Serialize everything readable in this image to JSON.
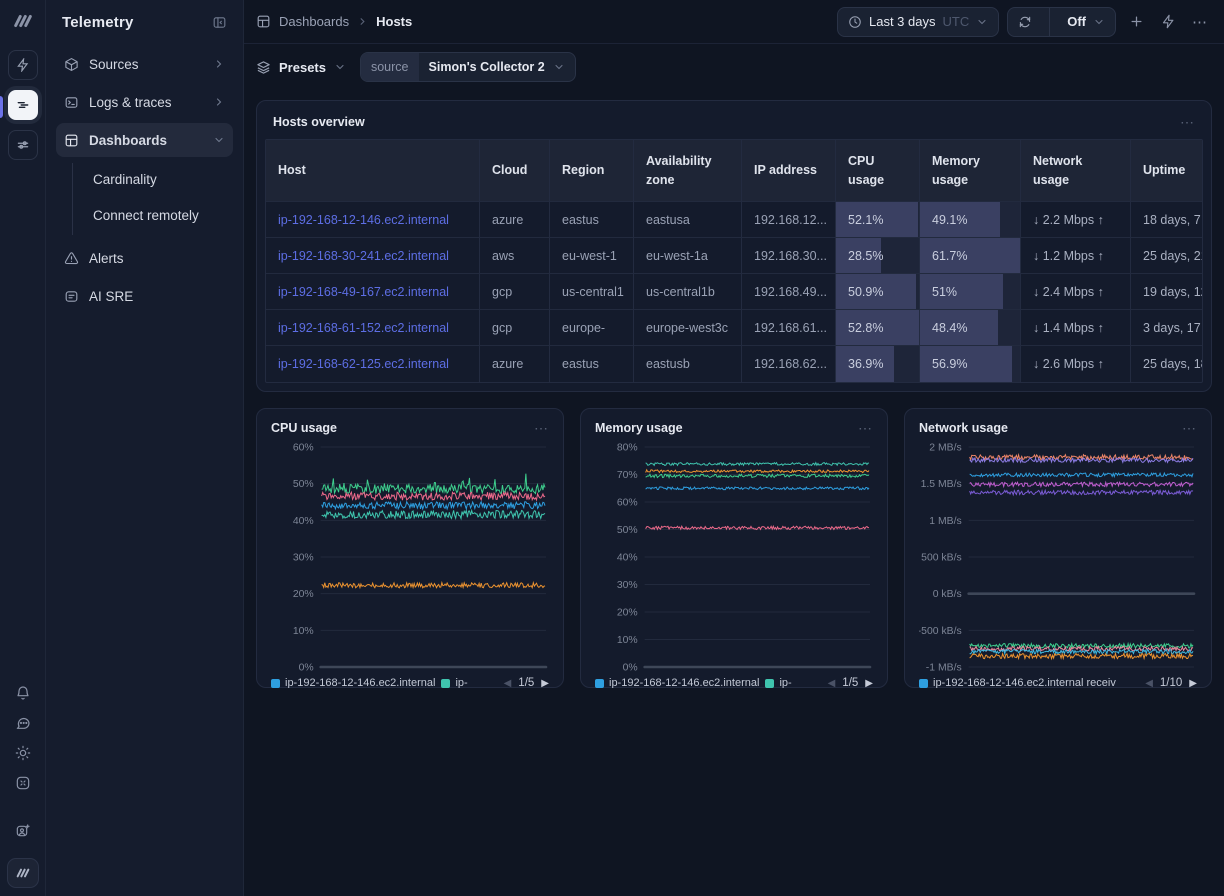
{
  "app": {
    "title": "Telemetry",
    "accent_color": "#6c72e8",
    "link_color": "#5d6ee4"
  },
  "sidebar": {
    "title": "Telemetry",
    "items": [
      {
        "label": "Sources"
      },
      {
        "label": "Logs & traces"
      },
      {
        "label": "Dashboards",
        "children": [
          {
            "label": "Cardinality"
          },
          {
            "label": "Connect remotely"
          }
        ]
      },
      {
        "label": "Alerts"
      },
      {
        "label": "AI SRE"
      }
    ]
  },
  "topbar": {
    "breadcrumb": {
      "parent": "Dashboards",
      "current": "Hosts"
    },
    "time_range": {
      "label": "Last 3 days",
      "timezone": "UTC"
    },
    "refresh": {
      "label": "Off"
    },
    "overflow_menu": "⋯"
  },
  "filterbar": {
    "presets_label": "Presets",
    "source_key": "source",
    "source_value": "Simon's Collector 2"
  },
  "hosts_table": {
    "title": "Hosts overview",
    "menu": "⋯",
    "columns": [
      "Host",
      "Cloud",
      "Region",
      "Availability zone",
      "IP address",
      "CPU usage",
      "Memory usage",
      "Network usage",
      "Uptime"
    ],
    "cpu_bar_max": 52.8,
    "mem_bar_max": 61.7,
    "rows": [
      {
        "host": "ip-192-168-12-146.ec2.internal",
        "cloud": "azure",
        "region": "eastus",
        "zone": "eastusa",
        "ip": "192.168.12...",
        "cpu": "52.1%",
        "cpu_pct": 52.1,
        "mem": "49.1%",
        "mem_pct": 49.1,
        "network": "↓ 2.2 Mbps ↑",
        "uptime": "18 days, 7"
      },
      {
        "host": "ip-192-168-30-241.ec2.internal",
        "cloud": "aws",
        "region": "eu-west-1",
        "zone": "eu-west-1a",
        "ip": "192.168.30...",
        "cpu": "28.5%",
        "cpu_pct": 28.5,
        "mem": "61.7%",
        "mem_pct": 61.7,
        "network": "↓ 1.2 Mbps ↑",
        "uptime": "25 days, 21"
      },
      {
        "host": "ip-192-168-49-167.ec2.internal",
        "cloud": "gcp",
        "region": "us-central1",
        "zone": "us-central1b",
        "ip": "192.168.49...",
        "cpu": "50.9%",
        "cpu_pct": 50.9,
        "mem": "51%",
        "mem_pct": 51.0,
        "network": "↓ 2.4 Mbps ↑",
        "uptime": "19 days, 12"
      },
      {
        "host": "ip-192-168-61-152.ec2.internal",
        "cloud": "gcp",
        "region": "europe-",
        "zone": "europe-west3c",
        "ip": "192.168.61...",
        "cpu": "52.8%",
        "cpu_pct": 52.8,
        "mem": "48.4%",
        "mem_pct": 48.4,
        "network": "↓ 1.4 Mbps ↑",
        "uptime": "3 days, 17"
      },
      {
        "host": "ip-192-168-62-125.ec2.internal",
        "cloud": "azure",
        "region": "eastus",
        "zone": "eastusb",
        "ip": "192.168.62...",
        "cpu": "36.9%",
        "cpu_pct": 36.9,
        "mem": "56.9%",
        "mem_pct": 56.9,
        "network": "↓ 2.6 Mbps ↑",
        "uptime": "25 days, 18"
      }
    ]
  },
  "chart_data": [
    {
      "id": "cpu",
      "type": "line",
      "title": "CPU usage",
      "menu": "⋯",
      "x_range": "Last 3 days",
      "ylim": [
        0,
        60
      ],
      "baseline": 0,
      "grid": true,
      "ticks": [
        {
          "label": "60%",
          "value": 60
        },
        {
          "label": "50%",
          "value": 50
        },
        {
          "label": "40%",
          "value": 40
        },
        {
          "label": "30%",
          "value": 30
        },
        {
          "label": "20%",
          "value": 20
        },
        {
          "label": "10%",
          "value": 10
        },
        {
          "label": "0%",
          "value": 0
        }
      ],
      "series": [
        {
          "name": "teal-series",
          "color": "#3fc4ae",
          "base": 41.6,
          "amp": 1.1
        },
        {
          "name": "green-series",
          "color": "#3ecf8e",
          "base": 48.6,
          "amp": 1.3,
          "spike": 3
        },
        {
          "name": "pink-series",
          "color": "#ed6a8b",
          "base": 46.6,
          "amp": 1.1
        },
        {
          "name": "blue-series",
          "color": "#2e9fe0",
          "base": 44.1,
          "amp": 1.0
        },
        {
          "name": "orange-series",
          "color": "#ec9330",
          "base": 22.3,
          "amp": 0.7
        }
      ],
      "legend": [
        {
          "label": "ip-192-168-12-146.ec2.internal",
          "color": "#2e9fe0"
        },
        {
          "label": "ip-",
          "color": "#3fc4ae"
        }
      ],
      "pagination": {
        "page": "1/5"
      }
    },
    {
      "id": "memory",
      "type": "line",
      "title": "Memory usage",
      "menu": "⋯",
      "x_range": "Last 3 days",
      "ylim": [
        0,
        80
      ],
      "baseline": 0,
      "grid": true,
      "ticks": [
        {
          "label": "80%",
          "value": 80
        },
        {
          "label": "70%",
          "value": 70
        },
        {
          "label": "60%",
          "value": 60
        },
        {
          "label": "50%",
          "value": 50
        },
        {
          "label": "40%",
          "value": 40
        },
        {
          "label": "30%",
          "value": 30
        },
        {
          "label": "20%",
          "value": 20
        },
        {
          "label": "10%",
          "value": 10
        },
        {
          "label": "0%",
          "value": 0
        }
      ],
      "series": [
        {
          "name": "teal-series",
          "color": "#3fc4ae",
          "base": 73.8,
          "amp": 0.5
        },
        {
          "name": "orange-series",
          "color": "#ec9330",
          "base": 71.2,
          "amp": 0.5
        },
        {
          "name": "green-series",
          "color": "#3ecf8e",
          "base": 69.5,
          "amp": 0.6
        },
        {
          "name": "blue-series",
          "color": "#2e9fe0",
          "base": 65.0,
          "amp": 0.5
        },
        {
          "name": "pink-series",
          "color": "#ed6a8b",
          "base": 50.6,
          "amp": 0.6
        }
      ],
      "legend": [
        {
          "label": "ip-192-168-12-146.ec2.internal",
          "color": "#2e9fe0"
        },
        {
          "label": "ip-",
          "color": "#3fc4ae"
        }
      ],
      "pagination": {
        "page": "1/5"
      }
    },
    {
      "id": "network",
      "type": "line",
      "title": "Network usage",
      "menu": "⋯",
      "x_range": "Last 3 days",
      "ylim": [
        -1,
        2
      ],
      "baseline": 0,
      "grid": true,
      "ticks": [
        {
          "label": "2 MB/s",
          "value": 2
        },
        {
          "label": "1.5 MB/s",
          "value": 1.5
        },
        {
          "label": "1 MB/s",
          "value": 1
        },
        {
          "label": "500 kB/s",
          "value": 0.5
        },
        {
          "label": "0 kB/s",
          "value": 0
        },
        {
          "label": "-500 kB/s",
          "value": -0.5
        },
        {
          "label": "-1 MB/s",
          "value": -1
        }
      ],
      "series": [
        {
          "name": "salmon-receive",
          "color": "#ef8668",
          "base": 1.86,
          "amp": 0.035
        },
        {
          "name": "violet-receive",
          "color": "#8c7ce4",
          "base": 1.82,
          "amp": 0.03
        },
        {
          "name": "blue-receive",
          "color": "#2e9fe0",
          "base": 1.62,
          "amp": 0.025
        },
        {
          "name": "magenta-receive",
          "color": "#c05ed0",
          "base": 1.49,
          "amp": 0.03
        },
        {
          "name": "purple-receive",
          "color": "#7b5cd6",
          "base": 1.38,
          "amp": 0.03
        },
        {
          "name": "green-transmit",
          "color": "#3ecf8e",
          "base": -0.71,
          "amp": 0.03
        },
        {
          "name": "pink-transmit",
          "color": "#ef8a9e",
          "base": -0.75,
          "amp": 0.03
        },
        {
          "name": "cyan-transmit",
          "color": "#3fb9e0",
          "base": -0.79,
          "amp": 0.03
        },
        {
          "name": "orange-transmit",
          "color": "#ec9330",
          "base": -0.85,
          "amp": 0.035
        }
      ],
      "legend": [
        {
          "label": "ip-192-168-12-146.ec2.internal receiv",
          "color": "#2e9fe0"
        }
      ],
      "pagination": {
        "page": "1/10"
      }
    }
  ],
  "pager_glyphs": {
    "prev": "◀",
    "next": "▶"
  }
}
